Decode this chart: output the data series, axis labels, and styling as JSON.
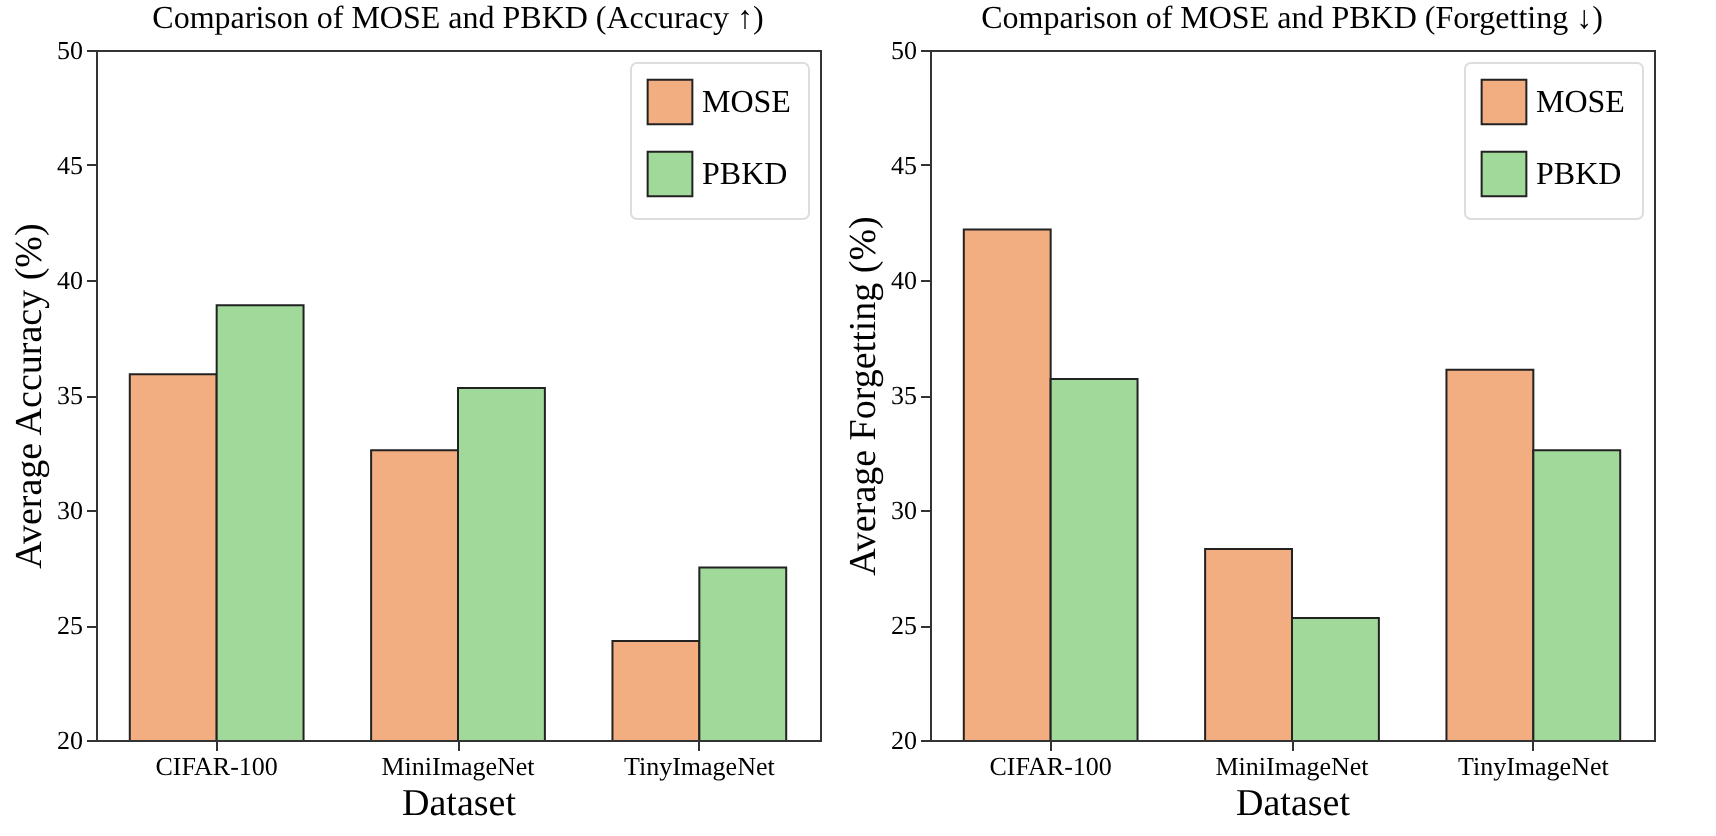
{
  "chart_data": [
    {
      "type": "bar",
      "title": "Comparison of MOSE and PBKD (Accuracy ↑)",
      "xlabel": "Dataset",
      "ylabel": "Average Accuracy (%)",
      "categories": [
        "CIFAR-100",
        "MiniImageNet",
        "TinyImageNet"
      ],
      "series": [
        {
          "name": "MOSE",
          "color": "#f2ae80",
          "values": [
            35.9,
            32.6,
            24.3
          ]
        },
        {
          "name": "PBKD",
          "color": "#a0d99a",
          "values": [
            38.9,
            35.3,
            27.5
          ]
        }
      ],
      "ylim": [
        20,
        50
      ],
      "yticks": [
        20,
        25,
        30,
        35,
        40,
        45,
        50
      ],
      "legend": "top right"
    },
    {
      "type": "bar",
      "title": "Comparison of MOSE and PBKD (Forgetting ↓)",
      "xlabel": "Dataset",
      "ylabel": "Average Forgetting (%)",
      "categories": [
        "CIFAR-100",
        "MiniImageNet",
        "TinyImageNet"
      ],
      "series": [
        {
          "name": "MOSE",
          "color": "#f2ae80",
          "values": [
            42.2,
            28.3,
            36.1
          ]
        },
        {
          "name": "PBKD",
          "color": "#a0d99a",
          "values": [
            35.7,
            25.3,
            32.6
          ]
        }
      ],
      "ylim": [
        20,
        50
      ],
      "yticks": [
        20,
        25,
        30,
        35,
        40,
        45,
        50
      ],
      "legend": "top right"
    }
  ]
}
